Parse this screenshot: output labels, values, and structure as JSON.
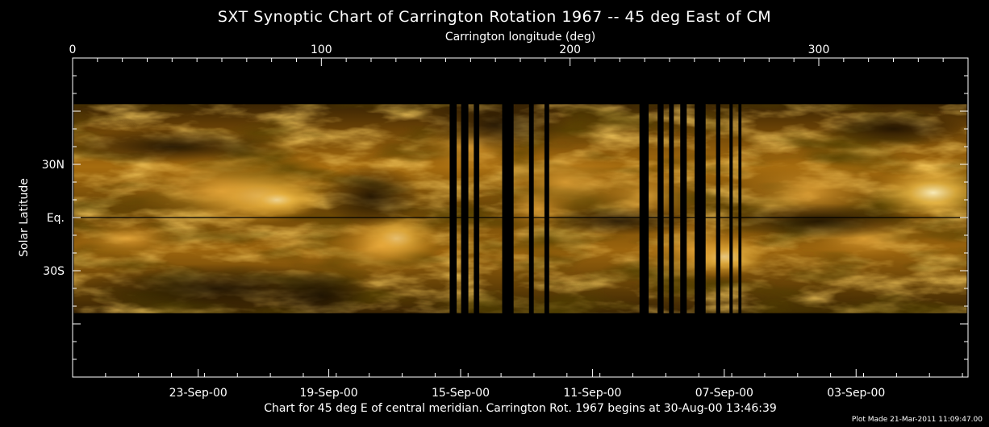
{
  "chart_data": {
    "type": "heatmap",
    "title": "SXT Synoptic Chart of Carrington Rotation 1967 -- 45 deg East of CM",
    "xlabel_top": "Carrington longitude (deg)",
    "ylabel": "Solar Latitude",
    "x_ticks_top": [
      {
        "value": 0,
        "label": "0"
      },
      {
        "value": 100,
        "label": "100"
      },
      {
        "value": 200,
        "label": "200"
      },
      {
        "value": 300,
        "label": "300"
      }
    ],
    "y_ticks": [
      {
        "value": 30,
        "label": "30N"
      },
      {
        "value": 0,
        "label": "Eq."
      },
      {
        "value": -30,
        "label": "30S"
      }
    ],
    "x_ticks_bottom": [
      {
        "value": 50.5,
        "label": "23-Sep-00"
      },
      {
        "value": 103,
        "label": "19-Sep-00"
      },
      {
        "value": 156,
        "label": "15-Sep-00"
      },
      {
        "value": 209,
        "label": "11-Sep-00"
      },
      {
        "value": 262,
        "label": "07-Sep-00"
      },
      {
        "value": 315,
        "label": "03-Sep-00"
      }
    ],
    "xlim": [
      0,
      360
    ],
    "ylim": [
      -90,
      90
    ],
    "data_extent_lat": [
      -54,
      64
    ],
    "data_gaps_longitude": [
      [
        151.6,
        154.4
      ],
      [
        156.2,
        159.1
      ],
      [
        161.3,
        163.5
      ],
      [
        172.7,
        177.3
      ],
      [
        183.5,
        185.4
      ],
      [
        189.7,
        191.6
      ],
      [
        227.9,
        231.6
      ],
      [
        235.2,
        237.6
      ],
      [
        239.8,
        241.7
      ],
      [
        244.3,
        246.9
      ],
      [
        250.1,
        254.5
      ],
      [
        258.7,
        260.4
      ],
      [
        264.1,
        265.4
      ],
      [
        267.7,
        268.9
      ]
    ],
    "colormap": "yohkoh-sxt-orange",
    "equator_line": true
  },
  "text": {
    "bottom_caption": "Chart for 45 deg E of central meridian.  Carrington Rot. 1967 begins at 30-Aug-00 13:46:39",
    "plot_made": "Plot Made 21-Mar-2011 11:09:47.00"
  },
  "colors": {
    "background": "#000000",
    "axes": "#ffffff",
    "dark_sun": "#2a1a02",
    "mid_sun": "#8a5a0a",
    "bright_sun": "#f6c24a",
    "hot_spot": "#fff2c0"
  }
}
